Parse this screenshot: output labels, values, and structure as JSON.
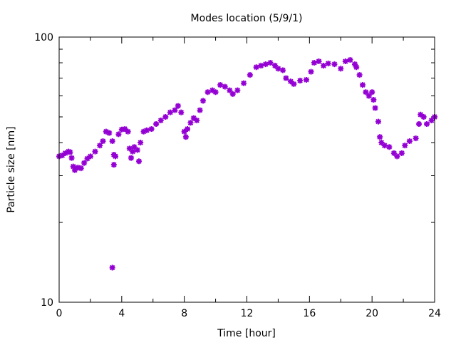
{
  "chart_data": {
    "type": "scatter",
    "title": "Modes location (5/9/1)",
    "xlabel": "Time [hour]",
    "ylabel": "Particle size [nm]",
    "xlim": [
      0,
      24
    ],
    "ylim": [
      10,
      100
    ],
    "yscale": "log",
    "xticks": [
      "0",
      "4",
      "8",
      "12",
      "16",
      "20",
      "24"
    ],
    "yticks": [
      "10",
      "100"
    ],
    "grid": false,
    "legend": "none",
    "color": "#9400d3",
    "points": [
      [
        0,
        35.5
      ],
      [
        0.2,
        35.8
      ],
      [
        0.4,
        36.5
      ],
      [
        0.6,
        37
      ],
      [
        0.7,
        36.8
      ],
      [
        0.8,
        35
      ],
      [
        0.9,
        32.5
      ],
      [
        1.0,
        31.5
      ],
      [
        1.2,
        32.2
      ],
      [
        1.4,
        32
      ],
      [
        1.6,
        33.5
      ],
      [
        1.8,
        34.8
      ],
      [
        2.0,
        35.5
      ],
      [
        2.3,
        37
      ],
      [
        2.6,
        39
      ],
      [
        2.8,
        40.5
      ],
      [
        3.0,
        44
      ],
      [
        3.2,
        43.5
      ],
      [
        3.4,
        40.5
      ],
      [
        3.5,
        36
      ],
      [
        3.6,
        35.5
      ],
      [
        3.5,
        33
      ],
      [
        3.4,
        13.5
      ],
      [
        3.8,
        43
      ],
      [
        4.0,
        44.8
      ],
      [
        4.2,
        45
      ],
      [
        4.4,
        44
      ],
      [
        4.5,
        38
      ],
      [
        4.6,
        35
      ],
      [
        4.7,
        37
      ],
      [
        4.8,
        38.5
      ],
      [
        5.0,
        37.5
      ],
      [
        5.1,
        34
      ],
      [
        5.2,
        40
      ],
      [
        5.4,
        44
      ],
      [
        5.6,
        44.5
      ],
      [
        5.9,
        45
      ],
      [
        6.2,
        47
      ],
      [
        6.5,
        48.5
      ],
      [
        6.8,
        50
      ],
      [
        7.1,
        52
      ],
      [
        7.4,
        53
      ],
      [
        7.6,
        55
      ],
      [
        7.8,
        52
      ],
      [
        8.0,
        44
      ],
      [
        8.1,
        42
      ],
      [
        8.2,
        45
      ],
      [
        8.4,
        47.5
      ],
      [
        8.6,
        49.5
      ],
      [
        8.8,
        48.5
      ],
      [
        9.0,
        53
      ],
      [
        9.2,
        57.5
      ],
      [
        9.5,
        62
      ],
      [
        9.8,
        63
      ],
      [
        10.0,
        62
      ],
      [
        10.3,
        66
      ],
      [
        10.6,
        65
      ],
      [
        10.9,
        63
      ],
      [
        11.1,
        61
      ],
      [
        11.4,
        63
      ],
      [
        11.8,
        67
      ],
      [
        12.2,
        72
      ],
      [
        12.6,
        77
      ],
      [
        12.9,
        78
      ],
      [
        13.2,
        79
      ],
      [
        13.5,
        80
      ],
      [
        13.8,
        78
      ],
      [
        14.0,
        76
      ],
      [
        14.3,
        75
      ],
      [
        14.5,
        70
      ],
      [
        14.8,
        68
      ],
      [
        15.0,
        66.5
      ],
      [
        15.4,
        68.5
      ],
      [
        15.8,
        69
      ],
      [
        16.1,
        74
      ],
      [
        16.3,
        80
      ],
      [
        16.6,
        81
      ],
      [
        16.9,
        78
      ],
      [
        17.2,
        79.5
      ],
      [
        17.6,
        79
      ],
      [
        18.0,
        76
      ],
      [
        18.3,
        81
      ],
      [
        18.6,
        82
      ],
      [
        18.9,
        79
      ],
      [
        19.0,
        77
      ],
      [
        19.2,
        72
      ],
      [
        19.4,
        66
      ],
      [
        19.6,
        62
      ],
      [
        19.8,
        60
      ],
      [
        20.0,
        62
      ],
      [
        20.1,
        58
      ],
      [
        20.2,
        54
      ],
      [
        20.4,
        48
      ],
      [
        20.5,
        42
      ],
      [
        20.6,
        40
      ],
      [
        20.8,
        39
      ],
      [
        21.1,
        38.5
      ],
      [
        21.4,
        36.5
      ],
      [
        21.6,
        35.5
      ],
      [
        21.9,
        36.5
      ],
      [
        22.1,
        39
      ],
      [
        22.4,
        40.5
      ],
      [
        22.8,
        41.5
      ],
      [
        23.0,
        47
      ],
      [
        23.1,
        51
      ],
      [
        23.3,
        50
      ],
      [
        23.5,
        47
      ],
      [
        23.8,
        48.5
      ],
      [
        24.0,
        50
      ]
    ]
  }
}
